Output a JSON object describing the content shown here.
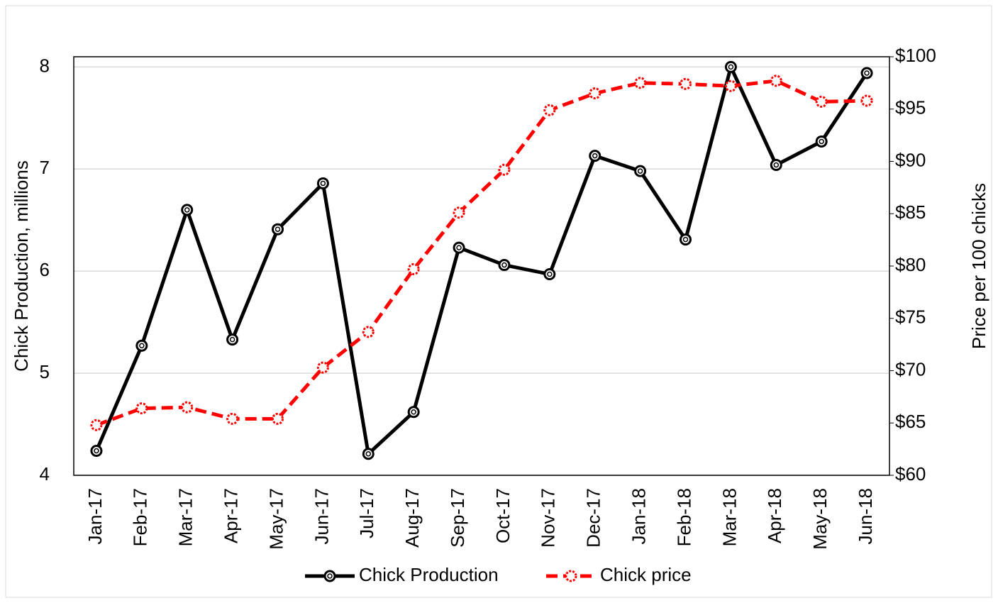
{
  "chart_data": {
    "type": "line",
    "y_label": "Chick Production, millions",
    "y2_label": "Price per 100 chicks",
    "categories": [
      "Jan-17",
      "Feb-17",
      "Mar-17",
      "Apr-17",
      "May-17",
      "Jun-17",
      "Jul-17",
      "Aug-17",
      "Sep-17",
      "Oct-17",
      "Nov-17",
      "Dec-17",
      "Jan-18",
      "Feb-18",
      "Mar-18",
      "Apr-18",
      "May-18",
      "Jun-18"
    ],
    "series": [
      {
        "name": "Chick Production",
        "color": "#000000",
        "dash": "solid",
        "values": [
          4.24,
          5.27,
          6.6,
          5.33,
          6.41,
          6.86,
          4.21,
          4.62,
          6.23,
          6.06,
          5.97,
          7.13,
          6.98,
          6.31,
          8.0,
          7.04,
          7.27,
          7.94
        ]
      },
      {
        "name": "Chick price",
        "color": "#ff0000",
        "dash": "dashed",
        "axis": "y2",
        "values": [
          64.8,
          66.4,
          66.5,
          65.4,
          65.4,
          70.3,
          73.7,
          79.7,
          85.1,
          89.2,
          94.9,
          96.5,
          97.5,
          97.4,
          97.2,
          97.7,
          95.7,
          95.8
        ]
      }
    ],
    "ylim": [
      4,
      8.1
    ],
    "yticks": [
      4,
      5,
      6,
      7,
      8
    ],
    "y2lim": [
      60,
      100
    ],
    "y2ticks": [
      {
        "value": 60,
        "label": "$60"
      },
      {
        "value": 65,
        "label": "$65"
      },
      {
        "value": 70,
        "label": "$70"
      },
      {
        "value": 75,
        "label": "$75"
      },
      {
        "value": 80,
        "label": "$80"
      },
      {
        "value": 85,
        "label": "$85"
      },
      {
        "value": 90,
        "label": "$90"
      },
      {
        "value": 95,
        "label": "$95"
      },
      {
        "value": 100,
        "label": "$100"
      }
    ],
    "grid": true,
    "legend": "bottom"
  }
}
